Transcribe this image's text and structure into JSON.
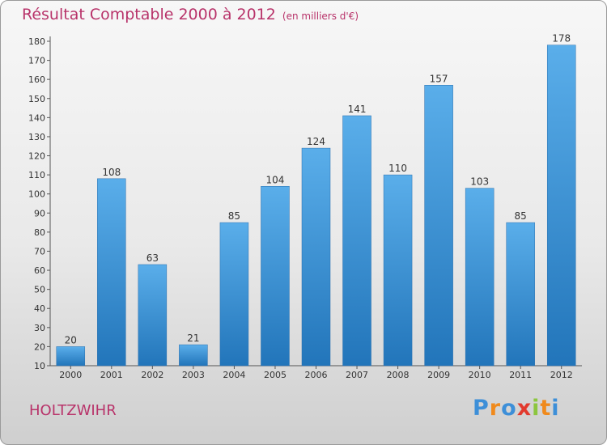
{
  "chart_data": {
    "type": "bar",
    "title": "Résultat Comptable 2000 à 2012",
    "subtitle": "(en milliers d'€)",
    "categories": [
      "2000",
      "2001",
      "2002",
      "2003",
      "2004",
      "2005",
      "2006",
      "2007",
      "2008",
      "2009",
      "2010",
      "2011",
      "2012"
    ],
    "values": [
      20,
      108,
      63,
      21,
      85,
      104,
      124,
      141,
      110,
      157,
      103,
      85,
      178
    ],
    "ylim": [
      10,
      180
    ],
    "yticks": [
      10,
      20,
      30,
      40,
      50,
      60,
      70,
      80,
      90,
      100,
      110,
      120,
      130,
      140,
      150,
      160,
      170,
      180
    ],
    "xlabel": "",
    "ylabel": "",
    "grid": false,
    "bar_color": "#3a8fd6"
  },
  "commune": "HOLTZWIHR",
  "logo": {
    "letters": [
      "P",
      "r",
      "o",
      "x",
      "i",
      "t",
      "i"
    ],
    "colors": [
      "#3d8fd8",
      "#f08a1c",
      "#3d8fd8",
      "#e23a2e",
      "#8cc63f",
      "#f08a1c",
      "#3d8fd8"
    ]
  },
  "title_color": "#b8336a"
}
